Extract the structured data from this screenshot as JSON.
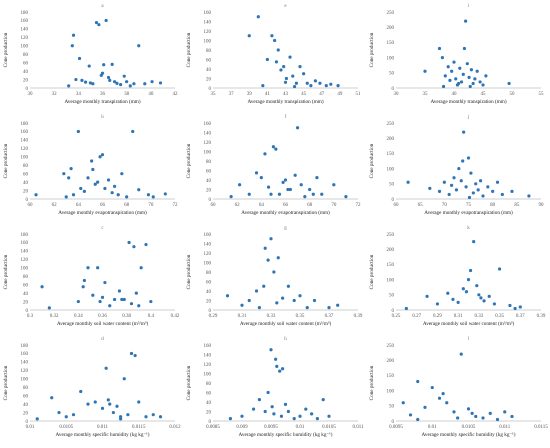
{
  "chart_data": [
    {
      "type": "scatter",
      "title": "a",
      "xlabel": "Average monthly transpiration (mm)",
      "ylabel": "Cone production",
      "xlim": [
        30,
        42
      ],
      "ylim": [
        0,
        180
      ],
      "xticks": [
        30,
        32,
        34,
        36,
        38,
        40,
        42
      ],
      "yticks": [
        0,
        20,
        40,
        60,
        80,
        100,
        120,
        140,
        160,
        180
      ],
      "x": [
        33.5,
        33.6,
        34.1,
        33.8,
        34.6,
        34.9,
        35.0,
        35.2,
        35.5,
        35.7,
        35.9,
        36.0,
        36.1,
        36.3,
        36.5,
        36.6,
        36.8,
        37.0,
        37.2,
        37.5,
        37.8,
        38.0,
        38.3,
        38.6,
        39.0,
        39.5,
        40.1,
        40.8,
        33.2,
        34.3
      ],
      "y": [
        100,
        125,
        70,
        20,
        14,
        52,
        12,
        10,
        155,
        150,
        30,
        35,
        55,
        160,
        25,
        18,
        56,
        15,
        11,
        8,
        28,
        15,
        5,
        10,
        100,
        10,
        15,
        12,
        5,
        18
      ]
    },
    {
      "type": "scatter",
      "title": "e",
      "xlabel": "Average monthly transpiration (mm)",
      "ylabel": "Cone production",
      "xlim": [
        35,
        51
      ],
      "ylim": [
        0,
        160
      ],
      "xticks": [
        35,
        37,
        39,
        41,
        43,
        45,
        47,
        49,
        51
      ],
      "yticks": [
        0,
        20,
        40,
        60,
        80,
        100,
        120,
        140,
        160
      ],
      "x": [
        39.0,
        40.0,
        41.5,
        41.8,
        42.2,
        42.5,
        42.8,
        43.1,
        43.5,
        43.8,
        44.2,
        44.6,
        45.0,
        45.4,
        45.8,
        46.3,
        46.8,
        47.5,
        48.0,
        48.8,
        41.0,
        42.0,
        43.0,
        44.0,
        40.5
      ],
      "y": [
        110,
        150,
        110,
        100,
        80,
        38,
        45,
        20,
        65,
        25,
        10,
        45,
        30,
        10,
        5,
        15,
        10,
        5,
        8,
        5,
        60,
        55,
        12,
        3,
        5
      ]
    },
    {
      "type": "scatter",
      "title": "i",
      "xlabel": "Average monthly transpiration (mm)",
      "ylabel": "Cone production",
      "xlim": [
        30,
        55
      ],
      "ylim": [
        0,
        250
      ],
      "xticks": [
        30,
        35,
        40,
        45,
        50,
        55
      ],
      "yticks": [
        0,
        50,
        100,
        150,
        200,
        250
      ],
      "x": [
        35.0,
        37.5,
        38.0,
        38.5,
        39.0,
        39.3,
        39.6,
        40.0,
        40.3,
        40.6,
        41.0,
        41.3,
        41.6,
        42.0,
        42.3,
        42.6,
        43.0,
        43.3,
        43.6,
        44.0,
        44.5,
        45.0,
        45.5,
        49.5,
        38.2,
        41.8,
        40.8,
        42.8
      ],
      "y": [
        55,
        130,
        100,
        40,
        70,
        25,
        55,
        85,
        30,
        10,
        65,
        20,
        45,
        220,
        80,
        35,
        60,
        15,
        30,
        55,
        20,
        10,
        40,
        15,
        5,
        130,
        15,
        5
      ]
    },
    {
      "type": "scatter",
      "title": "b",
      "xlabel": "Average monthly evapotranspiration (mm)",
      "ylabel": "Cone production",
      "xlim": [
        60,
        72
      ],
      "ylim": [
        0,
        180
      ],
      "xticks": [
        60,
        62,
        64,
        66,
        68,
        70,
        72
      ],
      "yticks": [
        0,
        20,
        40,
        60,
        80,
        100,
        120,
        140,
        160,
        180
      ],
      "x": [
        60.5,
        62.8,
        63.2,
        63.4,
        63.6,
        64.0,
        64.2,
        64.5,
        64.8,
        65.1,
        65.4,
        65.6,
        65.8,
        66.0,
        66.2,
        66.5,
        66.8,
        67.0,
        67.3,
        67.6,
        68.0,
        68.5,
        69.0,
        69.8,
        70.2,
        71.2,
        63.0,
        65.2
      ],
      "y": [
        10,
        60,
        50,
        72,
        10,
        160,
        25,
        18,
        50,
        90,
        35,
        40,
        100,
        105,
        25,
        45,
        15,
        30,
        10,
        60,
        5,
        160,
        22,
        10,
        5,
        12,
        5,
        70
      ]
    },
    {
      "type": "scatter",
      "title": "f",
      "xlabel": "Average monthly evapotranspiration (mm)",
      "ylabel": "Cone production",
      "xlim": [
        60,
        72
      ],
      "ylim": [
        0,
        160
      ],
      "xticks": [
        60,
        62,
        64,
        66,
        68,
        70,
        72
      ],
      "yticks": [
        0,
        20,
        40,
        60,
        80,
        100,
        120,
        140,
        160
      ],
      "x": [
        61.5,
        62.2,
        63.0,
        63.6,
        64.0,
        64.3,
        64.6,
        65.0,
        65.2,
        65.5,
        65.8,
        66.0,
        66.4,
        66.8,
        67.0,
        67.3,
        67.6,
        68.0,
        68.3,
        68.6,
        69.0,
        70.0,
        71.0,
        64.8,
        66.2
      ],
      "y": [
        5,
        30,
        10,
        55,
        45,
        95,
        25,
        110,
        105,
        10,
        35,
        40,
        20,
        50,
        150,
        30,
        5,
        20,
        10,
        45,
        10,
        30,
        5,
        10,
        20
      ]
    },
    {
      "type": "scatter",
      "title": "j",
      "xlabel": "Average monthly evapotranspiration (mm)",
      "ylabel": "Cone production",
      "xlim": [
        60,
        90
      ],
      "ylim": [
        0,
        250
      ],
      "xticks": [
        60,
        65,
        70,
        75,
        80,
        85,
        90
      ],
      "yticks": [
        0,
        50,
        100,
        150,
        200,
        250
      ],
      "x": [
        62.5,
        67.0,
        69.0,
        70.0,
        71.0,
        71.5,
        72.0,
        72.5,
        73.0,
        73.5,
        74.0,
        74.5,
        75.0,
        75.5,
        76.0,
        76.5,
        77.0,
        77.5,
        78.0,
        79.0,
        80.0,
        81.0,
        82.0,
        84.0,
        87.5,
        73.8,
        75.2
      ],
      "y": [
        55,
        35,
        25,
        55,
        15,
        45,
        70,
        30,
        100,
        60,
        220,
        40,
        135,
        85,
        20,
        50,
        30,
        60,
        10,
        40,
        25,
        55,
        15,
        25,
        10,
        125,
        5
      ]
    },
    {
      "type": "scatter",
      "title": "c",
      "xlabel": "Average monthly soil water content (m³/m³)",
      "ylabel": "Cone production",
      "xlim": [
        0.3,
        0.42
      ],
      "ylim": [
        0,
        180
      ],
      "xticks": [
        0.3,
        0.32,
        0.34,
        0.36,
        0.38,
        0.4,
        0.42
      ],
      "yticks": [
        0,
        20,
        40,
        60,
        80,
        100,
        120,
        140,
        160,
        180
      ],
      "x": [
        0.31,
        0.316,
        0.34,
        0.344,
        0.348,
        0.352,
        0.356,
        0.36,
        0.362,
        0.366,
        0.37,
        0.374,
        0.378,
        0.382,
        0.384,
        0.386,
        0.388,
        0.39,
        0.392,
        0.396,
        0.4,
        0.345,
        0.358,
        0.376
      ],
      "y": [
        55,
        5,
        20,
        55,
        100,
        35,
        100,
        30,
        65,
        10,
        25,
        45,
        25,
        160,
        15,
        150,
        40,
        10,
        100,
        155,
        20,
        70,
        20,
        25
      ]
    },
    {
      "type": "scatter",
      "title": "g",
      "xlabel": "Average monthly soil water content (m³/m³)",
      "ylabel": "Cone production",
      "xlim": [
        0.29,
        0.39
      ],
      "ylim": [
        0,
        160
      ],
      "xticks": [
        0.29,
        0.31,
        0.33,
        0.35,
        0.37,
        0.39
      ],
      "yticks": [
        0,
        20,
        40,
        60,
        80,
        100,
        120,
        140,
        160
      ],
      "x": [
        0.3,
        0.31,
        0.315,
        0.32,
        0.322,
        0.325,
        0.328,
        0.33,
        0.332,
        0.335,
        0.338,
        0.342,
        0.346,
        0.35,
        0.355,
        0.36,
        0.37,
        0.376,
        0.326,
        0.334
      ],
      "y": [
        30,
        10,
        20,
        40,
        5,
        50,
        105,
        150,
        80,
        110,
        25,
        50,
        20,
        30,
        5,
        20,
        5,
        10,
        130,
        15
      ]
    },
    {
      "type": "scatter",
      "title": "k",
      "xlabel": "Average monthly soil water content (m³/m³)",
      "ylabel": "Cone production",
      "xlim": [
        0.25,
        0.39
      ],
      "ylim": [
        0,
        250
      ],
      "xticks": [
        0.25,
        0.27,
        0.29,
        0.31,
        0.33,
        0.35,
        0.37,
        0.39
      ],
      "yticks": [
        0,
        50,
        100,
        150,
        200,
        250
      ],
      "x": [
        0.26,
        0.28,
        0.29,
        0.3,
        0.305,
        0.31,
        0.315,
        0.318,
        0.32,
        0.322,
        0.325,
        0.328,
        0.33,
        0.332,
        0.335,
        0.34,
        0.345,
        0.35,
        0.36,
        0.365,
        0.37
      ],
      "y": [
        5,
        45,
        20,
        55,
        35,
        25,
        70,
        60,
        100,
        130,
        225,
        80,
        50,
        40,
        30,
        45,
        20,
        135,
        15,
        5,
        10
      ]
    },
    {
      "type": "scatter",
      "title": "d",
      "xlabel": "Average monthly specific humidity (kg kg⁻¹)",
      "ylabel": "Cone production",
      "xlim": [
        0.01,
        0.012
      ],
      "ylim": [
        0,
        180
      ],
      "xticks": [
        0.01,
        0.0105,
        0.011,
        0.0115,
        0.012
      ],
      "yticks": [
        0,
        20,
        40,
        60,
        80,
        100,
        120,
        140,
        160,
        180
      ],
      "x": [
        0.0101,
        0.0103,
        0.0104,
        0.0105,
        0.0106,
        0.0107,
        0.0108,
        0.0109,
        0.011,
        0.01105,
        0.0111,
        0.01115,
        0.0112,
        0.01125,
        0.0113,
        0.01135,
        0.0114,
        0.01145,
        0.0115,
        0.0116,
        0.0117,
        0.0118,
        0.01108,
        0.01125
      ],
      "y": [
        5,
        55,
        20,
        10,
        15,
        70,
        40,
        45,
        30,
        125,
        40,
        20,
        35,
        10,
        100,
        15,
        160,
        155,
        45,
        10,
        15,
        10,
        50,
        5
      ]
    },
    {
      "type": "scatter",
      "title": "h",
      "xlabel": "Average monthly specific humidity (kg kg⁻¹)",
      "ylabel": "Cone production",
      "xlim": [
        0.0085,
        0.011
      ],
      "ylim": [
        0,
        160
      ],
      "xticks": [
        0.0085,
        0.009,
        0.0095,
        0.01,
        0.0105,
        0.011
      ],
      "yticks": [
        0,
        20,
        40,
        60,
        80,
        100,
        120,
        140,
        160
      ],
      "x": [
        0.0088,
        0.009,
        0.0092,
        0.0093,
        0.0094,
        0.00945,
        0.0095,
        0.00952,
        0.00955,
        0.0096,
        0.00965,
        0.0097,
        0.00975,
        0.0098,
        0.0099,
        0.01,
        0.0101,
        0.0102,
        0.0103,
        0.0104,
        0.0105,
        0.00958,
        0.00968
      ],
      "y": [
        5,
        10,
        25,
        45,
        20,
        60,
        150,
        30,
        15,
        115,
        105,
        110,
        35,
        20,
        5,
        10,
        25,
        15,
        5,
        45,
        10,
        130,
        10
      ]
    },
    {
      "type": "scatter",
      "title": "l",
      "xlabel": "Average monthly specific humidity (kg kg⁻¹)",
      "ylabel": "Cone production",
      "xlim": [
        0.0095,
        0.0115
      ],
      "ylim": [
        0,
        250
      ],
      "xticks": [
        0.0095,
        0.01,
        0.0105,
        0.011,
        0.0115
      ],
      "yticks": [
        0,
        50,
        100,
        150,
        200,
        250
      ],
      "x": [
        0.0096,
        0.0097,
        0.0098,
        0.0099,
        0.01,
        0.0101,
        0.0102,
        0.0103,
        0.0104,
        0.0105,
        0.0106,
        0.0107,
        0.0108,
        0.0109,
        0.011,
        0.0111,
        0.0098,
        0.01015,
        0.01035,
        0.01055
      ],
      "y": [
        60,
        20,
        130,
        45,
        110,
        75,
        60,
        30,
        220,
        40,
        15,
        10,
        25,
        5,
        30,
        15,
        5,
        90,
        10,
        25
      ]
    }
  ]
}
